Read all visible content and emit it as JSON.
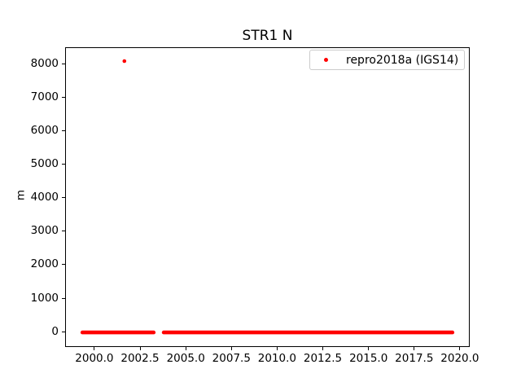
{
  "title": "STR1 N",
  "ylabel": "m",
  "legend": {
    "label": "repro2018a (IGS14)",
    "marker_color": "#ff0000"
  },
  "chart_data": {
    "type": "scatter",
    "title": "STR1 N",
    "xlabel": "",
    "ylabel": "m",
    "grid": false,
    "legend_position": "upper right",
    "xlim": [
      1998.4,
      2020.45
    ],
    "ylim": [
      -410,
      8490
    ],
    "xtick_labels": [
      "2000.0",
      "2002.5",
      "2005.0",
      "2007.5",
      "2010.0",
      "2012.5",
      "2015.0",
      "2017.5",
      "2020.0"
    ],
    "ytick_labels": [
      "0",
      "1000",
      "2000",
      "3000",
      "4000",
      "5000",
      "6000",
      "7000",
      "8000"
    ],
    "series": [
      {
        "name": "repro2018a (IGS14)",
        "color": "#ff0000",
        "marker": "point",
        "dense_runs": [
          {
            "x_start": 1999.3,
            "x_end": 2003.2,
            "y": 0
          },
          {
            "x_start": 2003.75,
            "x_end": 2019.55,
            "y": 0
          }
        ],
        "outlier_points": [
          {
            "x": 2001.6,
            "y": 8100
          }
        ]
      }
    ]
  }
}
